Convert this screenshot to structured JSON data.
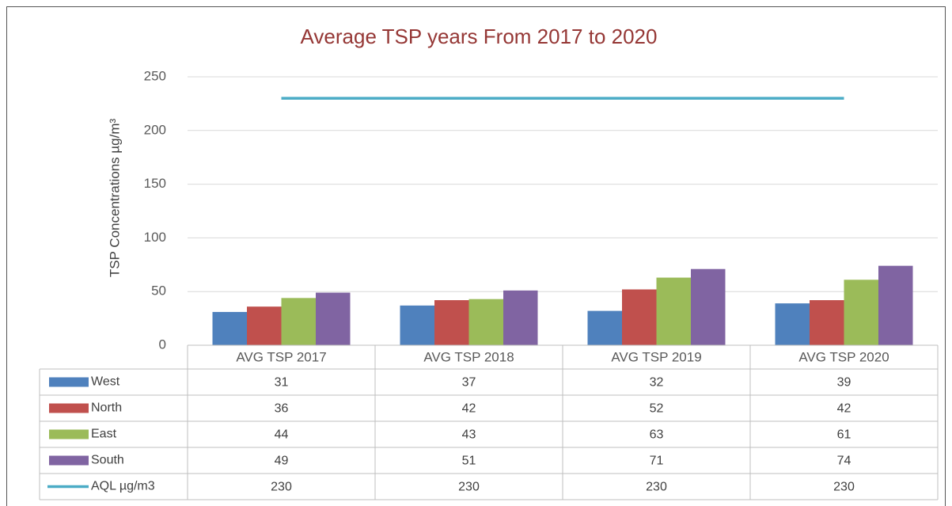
{
  "chart_data": {
    "type": "bar",
    "title": "Average TSP years From 2017 to 2020",
    "y_label": "TSP Concentrations µg/m³",
    "categories": [
      "AVG TSP 2017",
      "AVG TSP 2018",
      "AVG TSP 2019",
      "AVG TSP 2020"
    ],
    "series": [
      {
        "name": "West",
        "color": "#4f81bd",
        "values": [
          31,
          37,
          32,
          39
        ]
      },
      {
        "name": "North",
        "color": "#c0504d",
        "values": [
          36,
          42,
          52,
          42
        ]
      },
      {
        "name": "East",
        "color": "#9bbb59",
        "values": [
          44,
          43,
          63,
          61
        ]
      },
      {
        "name": "South",
        "color": "#8064a2",
        "values": [
          49,
          51,
          71,
          74
        ]
      },
      {
        "name": "AQL µg/m3",
        "color": "#4bacc6",
        "type": "line",
        "values": [
          230,
          230,
          230,
          230
        ]
      }
    ],
    "ylim": [
      0,
      250
    ],
    "yticks": [
      0,
      50,
      100,
      150,
      200,
      250
    ],
    "grid": true,
    "data_table": true
  }
}
